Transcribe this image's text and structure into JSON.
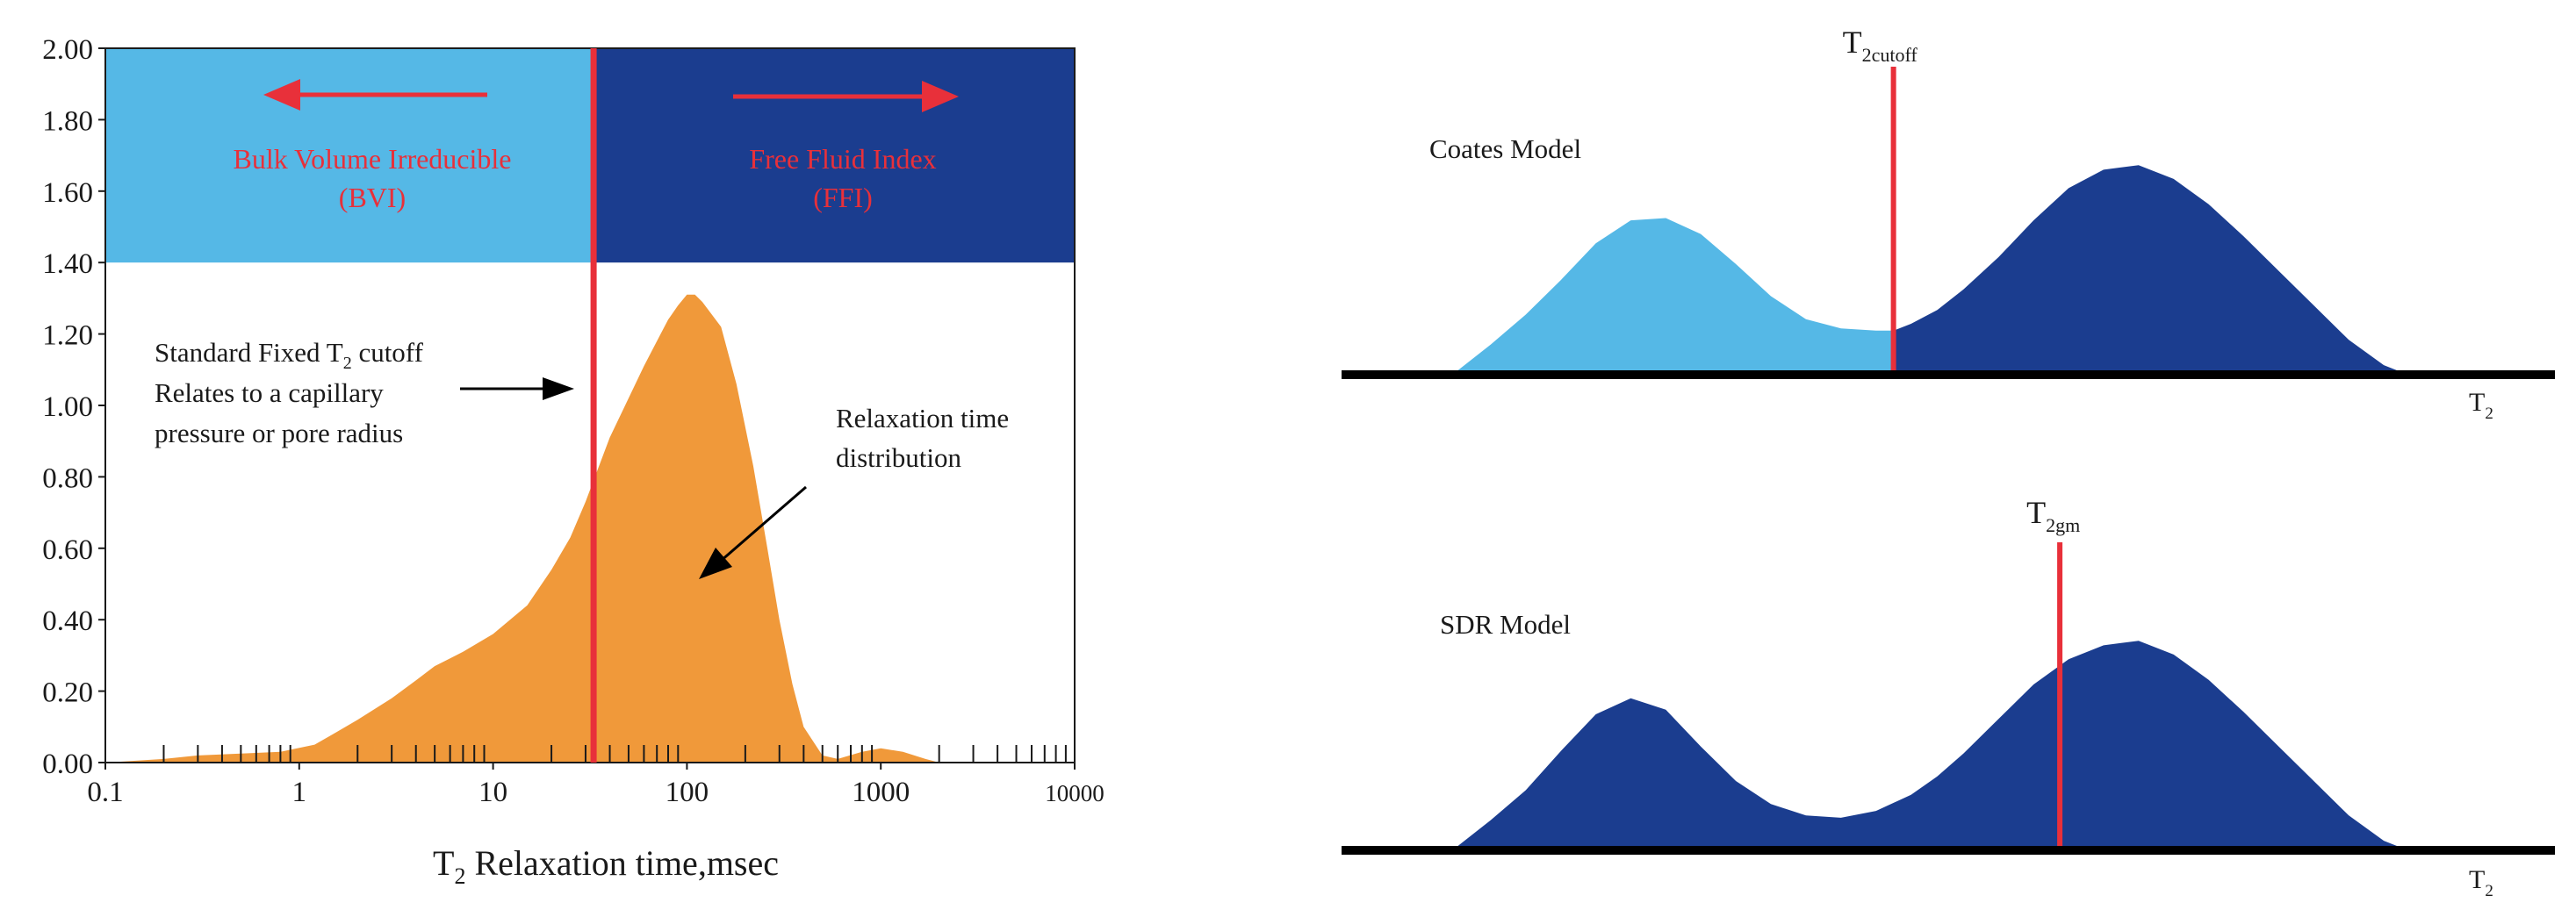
{
  "colors": {
    "bvi": "#55b8e6",
    "ffi": "#1b3d8f",
    "distribution": "#f0993a",
    "cutoff": "#e8303a",
    "label_red": "#e8303a",
    "text": "#1a1a1a",
    "baseline": "#000000"
  },
  "chart_data": [
    {
      "type": "area",
      "title": "",
      "xlabel_main": "T",
      "xlabel_sub": "2",
      "xlabel_rest": " Relaxation time,msec",
      "xscale": "log",
      "xlim": [
        0.1,
        10000
      ],
      "ylim": [
        0,
        2.0
      ],
      "x_tick_values": [
        0.1,
        1,
        10,
        100,
        1000,
        10000
      ],
      "x_tick_labels": [
        "0.1",
        "1",
        "10",
        "100",
        "1000",
        "10000"
      ],
      "y_tick_values": [
        0,
        0.2,
        0.4,
        0.6,
        0.8,
        1.0,
        1.2,
        1.4,
        1.6,
        1.8,
        2.0
      ],
      "y_tick_labels": [
        "0.00",
        "0.20",
        "0.40",
        "0.60",
        "0.80",
        "1.00",
        "1.20",
        "1.40",
        "1.60",
        "1.80",
        "2.00"
      ],
      "bands": {
        "y_from": 1.4,
        "y_to": 2.0,
        "left_label_1": "Bulk Volume Irreducible",
        "left_label_2": "(BVI)",
        "right_label_1": "Free Fluid Index",
        "right_label_2": "(FFI)"
      },
      "cutoff_x": 33,
      "cutoff_note": {
        "line1_prefix": "Standard Fixed T",
        "line1_sub": "2",
        "line1_suffix": " cutoff",
        "line2": "Relates to a capillary",
        "line3": "pressure or pore radius"
      },
      "distribution_note": {
        "line1": "Relaxation time",
        "line2": "distribution"
      },
      "series": [
        {
          "name": "Relaxation time distribution",
          "x": [
            0.1,
            0.2,
            0.3,
            0.5,
            0.8,
            1.2,
            1.5,
            2,
            3,
            4,
            5,
            7,
            10,
            15,
            20,
            25,
            30,
            40,
            50,
            60,
            70,
            80,
            90,
            100,
            110,
            120,
            150,
            180,
            220,
            260,
            300,
            350,
            400,
            500,
            600,
            800,
            1000,
            1300,
            1700,
            2000
          ],
          "values": [
            0.0,
            0.01,
            0.02,
            0.025,
            0.03,
            0.05,
            0.08,
            0.12,
            0.18,
            0.23,
            0.27,
            0.31,
            0.36,
            0.44,
            0.54,
            0.63,
            0.73,
            0.91,
            1.02,
            1.11,
            1.18,
            1.24,
            1.28,
            1.31,
            1.31,
            1.29,
            1.22,
            1.06,
            0.83,
            0.6,
            0.4,
            0.22,
            0.1,
            0.02,
            0.01,
            0.03,
            0.04,
            0.03,
            0.01,
            0.0
          ]
        }
      ]
    },
    {
      "type": "area",
      "title": "Coates Model",
      "x_label_main": "T",
      "x_label_sub": "2",
      "marker_label_main": "T",
      "marker_label_sub": "2cutoff",
      "marker_x": 50,
      "ylim": [
        0,
        1.0
      ],
      "series": [
        {
          "name": "BVI",
          "x": [
            0,
            4,
            8,
            12,
            16,
            20,
            24,
            28,
            32,
            36,
            40,
            44,
            48,
            50
          ],
          "values": [
            0.0,
            0.12,
            0.25,
            0.4,
            0.56,
            0.66,
            0.67,
            0.6,
            0.47,
            0.33,
            0.23,
            0.19,
            0.18,
            0.18
          ]
        },
        {
          "name": "FFI",
          "x": [
            50,
            52,
            55,
            58,
            62,
            66,
            70,
            74,
            78,
            82,
            86,
            90,
            94,
            98,
            102,
            106,
            108
          ],
          "values": [
            0.18,
            0.21,
            0.27,
            0.36,
            0.5,
            0.66,
            0.8,
            0.88,
            0.9,
            0.84,
            0.73,
            0.59,
            0.44,
            0.29,
            0.14,
            0.03,
            0.0
          ]
        }
      ]
    },
    {
      "type": "area",
      "title": "SDR Model",
      "x_label_main": "T",
      "x_label_sub": "2",
      "marker_label_main": "T",
      "marker_label_sub": "2gm",
      "marker_x": 69,
      "ylim": [
        0,
        1.0
      ],
      "series": [
        {
          "name": "Distribution",
          "x": [
            0,
            4,
            8,
            12,
            16,
            20,
            24,
            28,
            32,
            36,
            40,
            44,
            48,
            52,
            55,
            58,
            62,
            66,
            70,
            74,
            78,
            82,
            86,
            90,
            94,
            98,
            102,
            106,
            108
          ],
          "values": [
            0.0,
            0.12,
            0.25,
            0.42,
            0.58,
            0.65,
            0.6,
            0.44,
            0.29,
            0.19,
            0.14,
            0.13,
            0.16,
            0.23,
            0.31,
            0.41,
            0.56,
            0.71,
            0.82,
            0.88,
            0.9,
            0.84,
            0.73,
            0.59,
            0.44,
            0.29,
            0.14,
            0.03,
            0.0
          ]
        }
      ]
    }
  ]
}
